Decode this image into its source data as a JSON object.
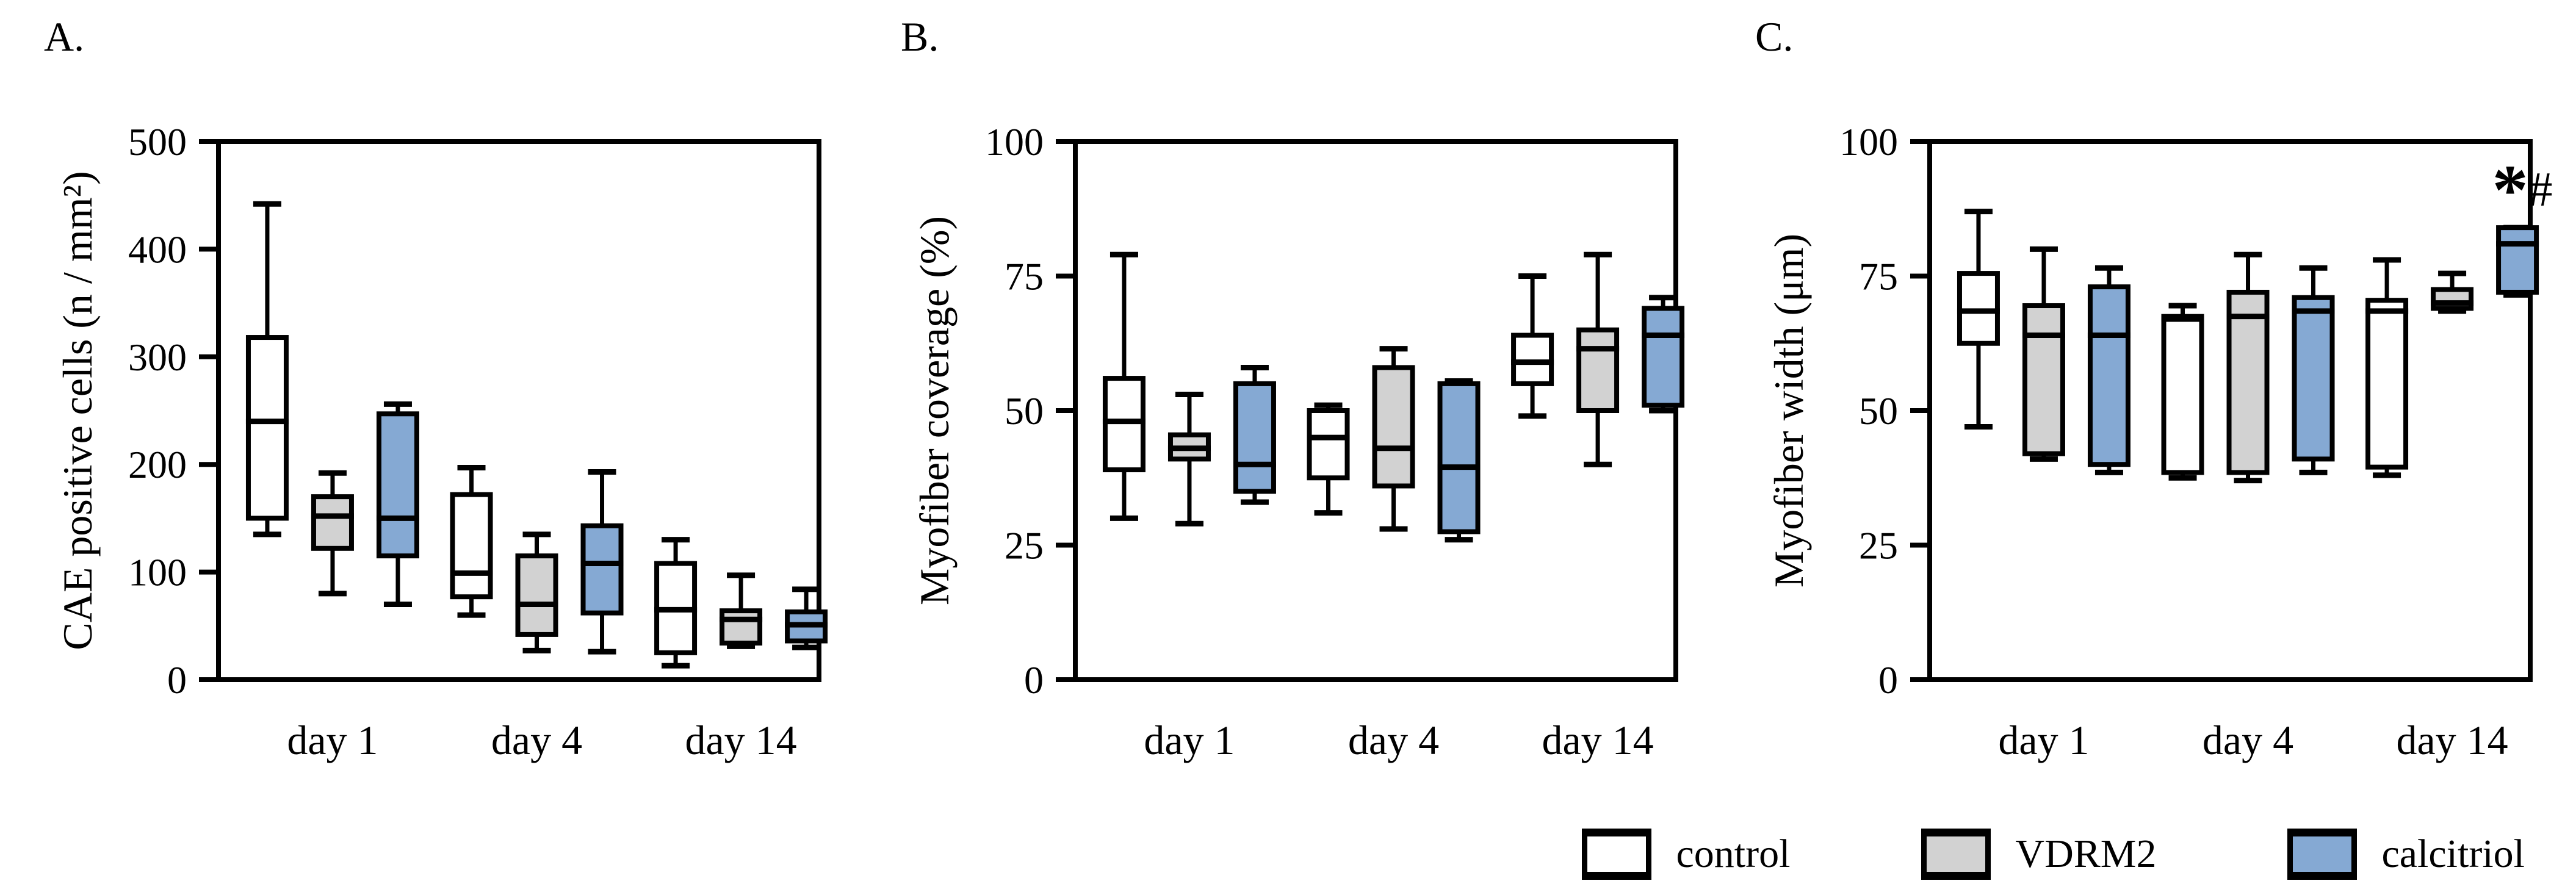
{
  "legend": {
    "items": [
      {
        "label": "control",
        "color": "#ffffff"
      },
      {
        "label": "VDRM2",
        "color": "#d2d2d2"
      },
      {
        "label": "calcitriol",
        "color": "#85a9d3"
      }
    ]
  },
  "chart_data": [
    {
      "type": "box",
      "panel_letter": "A.",
      "ylabel": "CAE positive cells (n / mm²)",
      "ylim": [
        0,
        500
      ],
      "yticks": [
        0,
        100,
        200,
        300,
        400,
        500
      ],
      "categories": [
        "day 1",
        "day 4",
        "day 14"
      ],
      "grid": false,
      "legend_position": "bottom-right",
      "series": [
        {
          "name": "control",
          "color": "#ffffff",
          "boxes": [
            {
              "min": 135,
              "q1": 150,
              "median": 240,
              "q3": 318,
              "max": 442
            },
            {
              "min": 60,
              "q1": 77,
              "median": 99,
              "q3": 172,
              "max": 197
            },
            {
              "min": 13,
              "q1": 25,
              "median": 65,
              "q3": 108,
              "max": 130
            }
          ]
        },
        {
          "name": "VDRM2",
          "color": "#d2d2d2",
          "boxes": [
            {
              "min": 80,
              "q1": 122,
              "median": 152,
              "q3": 170,
              "max": 192
            },
            {
              "min": 27,
              "q1": 42,
              "median": 70,
              "q3": 115,
              "max": 135
            },
            {
              "min": 31,
              "q1": 34,
              "median": 56,
              "q3": 64,
              "max": 97
            }
          ]
        },
        {
          "name": "calcitriol",
          "color": "#85a9d3",
          "boxes": [
            {
              "min": 70,
              "q1": 115,
              "median": 150,
              "q3": 247,
              "max": 256
            },
            {
              "min": 26,
              "q1": 62,
              "median": 108,
              "q3": 143,
              "max": 193
            },
            {
              "min": 30,
              "q1": 36,
              "median": 51,
              "q3": 63,
              "max": 84
            }
          ]
        }
      ]
    },
    {
      "type": "box",
      "panel_letter": "B.",
      "ylabel": "Myofiber coverage (%)",
      "ylim": [
        0,
        100
      ],
      "yticks": [
        0,
        25,
        50,
        75,
        100
      ],
      "categories": [
        "day 1",
        "day 4",
        "day 14"
      ],
      "grid": false,
      "legend_position": "bottom-right",
      "series": [
        {
          "name": "control",
          "color": "#ffffff",
          "boxes": [
            {
              "min": 30,
              "q1": 39,
              "median": 48,
              "q3": 56,
              "max": 79
            },
            {
              "min": 31,
              "q1": 37.5,
              "median": 45,
              "q3": 50,
              "max": 51
            },
            {
              "min": 49,
              "q1": 55,
              "median": 59,
              "q3": 64,
              "max": 75
            }
          ]
        },
        {
          "name": "VDRM2",
          "color": "#d2d2d2",
          "boxes": [
            {
              "min": 29,
              "q1": 41,
              "median": 43,
              "q3": 45.5,
              "max": 53
            },
            {
              "min": 28,
              "q1": 36,
              "median": 43,
              "q3": 58,
              "max": 61.5
            },
            {
              "min": 40,
              "q1": 50,
              "median": 61.5,
              "q3": 65,
              "max": 79
            }
          ]
        },
        {
          "name": "calcitriol",
          "color": "#85a9d3",
          "boxes": [
            {
              "min": 33,
              "q1": 35,
              "median": 40,
              "q3": 55,
              "max": 58
            },
            {
              "min": 26,
              "q1": 27.5,
              "median": 39.5,
              "q3": 55,
              "max": 55.5
            },
            {
              "min": 50,
              "q1": 51,
              "median": 64,
              "q3": 69,
              "max": 71
            }
          ]
        }
      ]
    },
    {
      "type": "box",
      "panel_letter": "C.",
      "ylabel": "Myofiber width (μm)",
      "ylim": [
        0,
        100
      ],
      "yticks": [
        0,
        25,
        50,
        75,
        100
      ],
      "categories": [
        "day 1",
        "day 4",
        "day 14"
      ],
      "grid": false,
      "legend_position": "bottom-right",
      "annotations": [
        {
          "text": "*#",
          "category_index": 2,
          "series_index": 2,
          "y": 86.5
        }
      ],
      "series": [
        {
          "name": "control",
          "color": "#ffffff",
          "boxes": [
            {
              "min": 47,
              "q1": 62.5,
              "median": 68.5,
              "q3": 75.5,
              "max": 87
            },
            {
              "min": 37.5,
              "q1": 38.5,
              "median": 67,
              "q3": 67.5,
              "max": 69.5
            },
            {
              "min": 38,
              "q1": 39.5,
              "median": 68.5,
              "q3": 70.5,
              "max": 78
            }
          ]
        },
        {
          "name": "VDRM2",
          "color": "#d2d2d2",
          "boxes": [
            {
              "min": 41,
              "q1": 42,
              "median": 64,
              "q3": 69.5,
              "max": 80
            },
            {
              "min": 37,
              "q1": 38.5,
              "median": 67.5,
              "q3": 72,
              "max": 79
            },
            {
              "min": 68.5,
              "q1": 69,
              "median": 70,
              "q3": 72.5,
              "max": 75.5
            }
          ]
        },
        {
          "name": "calcitriol",
          "color": "#85a9d3",
          "boxes": [
            {
              "min": 38.5,
              "q1": 40,
              "median": 64,
              "q3": 73,
              "max": 76.5
            },
            {
              "min": 38.5,
              "q1": 41,
              "median": 68.5,
              "q3": 71,
              "max": 76.5
            },
            {
              "min": 71.5,
              "q1": 72,
              "median": 81,
              "q3": 84,
              "max": 84
            }
          ]
        }
      ]
    }
  ]
}
